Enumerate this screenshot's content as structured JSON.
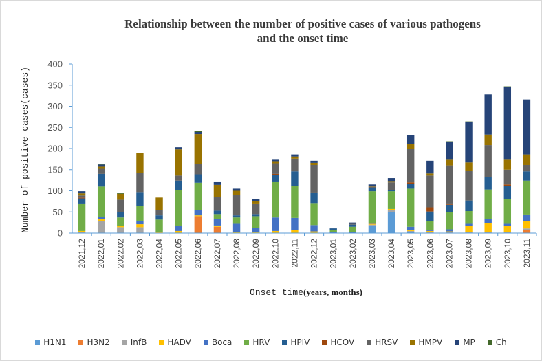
{
  "chart_data": {
    "type": "bar",
    "stacked": true,
    "title_lines": [
      "Relationship between the number of positive cases of various pathogens",
      "and the onset time"
    ],
    "ylabel": "Number of positive cases(cases)",
    "xlabel_mono": "Onset time",
    "xlabel_serif": "(years, months)",
    "ylim": [
      0,
      400
    ],
    "yticks": [
      "0",
      "50",
      "100",
      "150",
      "200",
      "250",
      "300",
      "350",
      "400"
    ],
    "categories": [
      "2021,12",
      "2022,01",
      "2022,02",
      "2022,03",
      "2022,04",
      "2022,05",
      "2022,06",
      "2022,07",
      "2022,08",
      "2022,09",
      "2022,10",
      "2022,11",
      "2022,12",
      "2023,01",
      "2023,02",
      "2023,03",
      "2023,04",
      "2023,05",
      "2023,06",
      "2023,07",
      "2023,08",
      "2023,09",
      "2023,10",
      "2023,11"
    ],
    "series": [
      {
        "name": "H1N1",
        "color": "#5b9bd5",
        "values": [
          0,
          0,
          0,
          0,
          0,
          0,
          0,
          0,
          0,
          0,
          0,
          0,
          0,
          0,
          0,
          18,
          50,
          2,
          0,
          0,
          0,
          0,
          0,
          0
        ]
      },
      {
        "name": "H3N2",
        "color": "#ed7d31",
        "values": [
          0,
          0,
          0,
          0,
          0,
          0,
          40,
          15,
          0,
          0,
          0,
          0,
          0,
          0,
          0,
          0,
          0,
          0,
          0,
          0,
          0,
          0,
          0,
          8
        ]
      },
      {
        "name": "InfB",
        "color": "#a5a5a5",
        "values": [
          3,
          28,
          14,
          14,
          0,
          0,
          0,
          0,
          0,
          0,
          0,
          0,
          0,
          0,
          0,
          2,
          5,
          3,
          3,
          2,
          2,
          3,
          2,
          3
        ]
      },
      {
        "name": "HADV",
        "color": "#ffc000",
        "values": [
          2,
          5,
          3,
          7,
          2,
          5,
          2,
          3,
          2,
          2,
          5,
          8,
          4,
          0,
          0,
          2,
          2,
          2,
          2,
          2,
          15,
          20,
          15,
          18
        ]
      },
      {
        "name": "Boca",
        "color": "#4472c4",
        "values": [
          0,
          5,
          0,
          8,
          0,
          12,
          12,
          15,
          20,
          10,
          32,
          28,
          15,
          2,
          3,
          2,
          0,
          8,
          2,
          5,
          5,
          10,
          5,
          15
        ]
      },
      {
        "name": "HRV",
        "color": "#70ad47",
        "values": [
          65,
          72,
          20,
          35,
          30,
          85,
          65,
          12,
          15,
          28,
          85,
          75,
          52,
          5,
          12,
          75,
          42,
          90,
          22,
          40,
          30,
          70,
          58,
          80
        ]
      },
      {
        "name": "HPIV",
        "color": "#255e91",
        "values": [
          12,
          30,
          12,
          33,
          10,
          22,
          20,
          8,
          5,
          5,
          15,
          35,
          25,
          4,
          5,
          8,
          3,
          12,
          22,
          18,
          25,
          30,
          32,
          22
        ]
      },
      {
        "name": "HCOV",
        "color": "#9e480e",
        "values": [
          2,
          0,
          0,
          0,
          0,
          0,
          0,
          0,
          0,
          0,
          3,
          0,
          0,
          0,
          0,
          0,
          0,
          3,
          10,
          3,
          0,
          0,
          3,
          0
        ]
      },
      {
        "name": "HRSV",
        "color": "#636363",
        "values": [
          5,
          12,
          30,
          45,
          12,
          12,
          25,
          33,
          48,
          25,
          25,
          30,
          65,
          0,
          2,
          3,
          18,
          80,
          75,
          90,
          70,
          75,
          35,
          15
        ]
      },
      {
        "name": "HMPV",
        "color": "#997300",
        "values": [
          5,
          5,
          14,
          48,
          30,
          62,
          70,
          28,
          10,
          5,
          5,
          5,
          5,
          0,
          0,
          2,
          3,
          10,
          5,
          15,
          20,
          25,
          25,
          25
        ]
      },
      {
        "name": "MP",
        "color": "#264478",
        "values": [
          5,
          5,
          0,
          0,
          0,
          5,
          5,
          8,
          5,
          5,
          5,
          5,
          5,
          2,
          3,
          3,
          7,
          22,
          30,
          40,
          95,
          95,
          170,
          130
        ]
      },
      {
        "name": "Ch",
        "color": "#43682b",
        "values": [
          0,
          2,
          2,
          0,
          0,
          0,
          2,
          0,
          0,
          0,
          0,
          0,
          0,
          0,
          0,
          0,
          0,
          0,
          0,
          2,
          2,
          0,
          2,
          0
        ]
      }
    ]
  }
}
